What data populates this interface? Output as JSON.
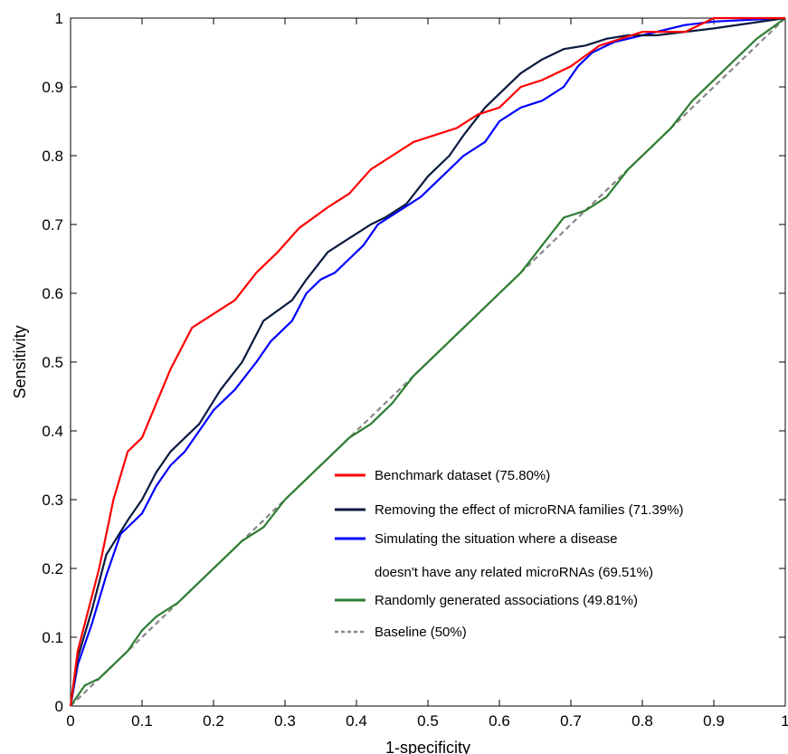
{
  "chart_data": {
    "type": "line",
    "xlabel": "1-specificity",
    "ylabel": "Sensitivity",
    "xlim": [
      0,
      1
    ],
    "ylim": [
      0,
      1
    ],
    "grid": false,
    "legend_position": "bottom-right",
    "x_ticks": [
      "0",
      "0.1",
      "0.2",
      "0.3",
      "0.4",
      "0.5",
      "0.6",
      "0.7",
      "0.8",
      "0.9",
      "1"
    ],
    "y_ticks": [
      "0",
      "0.1",
      "0.2",
      "0.3",
      "0.4",
      "0.5",
      "0.6",
      "0.7",
      "0.8",
      "0.9",
      "1"
    ],
    "series": [
      {
        "name": "Benchmark dataset (75.80%)",
        "color": "#ff0000",
        "x": [
          0,
          0.01,
          0.02,
          0.04,
          0.06,
          0.08,
          0.1,
          0.12,
          0.14,
          0.17,
          0.2,
          0.23,
          0.26,
          0.29,
          0.32,
          0.36,
          0.39,
          0.42,
          0.45,
          0.48,
          0.51,
          0.54,
          0.57,
          0.6,
          0.63,
          0.66,
          0.7,
          0.74,
          0.8,
          0.86,
          0.9,
          1
        ],
        "y": [
          0,
          0.08,
          0.12,
          0.2,
          0.3,
          0.37,
          0.39,
          0.44,
          0.49,
          0.55,
          0.57,
          0.59,
          0.63,
          0.66,
          0.695,
          0.725,
          0.745,
          0.78,
          0.8,
          0.82,
          0.83,
          0.84,
          0.86,
          0.87,
          0.9,
          0.91,
          0.93,
          0.96,
          0.98,
          0.98,
          1,
          1
        ]
      },
      {
        "name": "Removing the effect of microRNA families (71.39%)",
        "color": "#0a1a40",
        "x": [
          0,
          0.01,
          0.03,
          0.05,
          0.08,
          0.1,
          0.12,
          0.14,
          0.16,
          0.18,
          0.21,
          0.24,
          0.27,
          0.31,
          0.33,
          0.36,
          0.39,
          0.42,
          0.44,
          0.47,
          0.5,
          0.53,
          0.55,
          0.58,
          0.6,
          0.63,
          0.66,
          0.69,
          0.72,
          0.75,
          0.78,
          0.82,
          0.86,
          0.9,
          1
        ],
        "y": [
          0,
          0.07,
          0.14,
          0.22,
          0.27,
          0.3,
          0.34,
          0.37,
          0.39,
          0.41,
          0.46,
          0.5,
          0.56,
          0.59,
          0.62,
          0.66,
          0.68,
          0.7,
          0.71,
          0.73,
          0.77,
          0.8,
          0.83,
          0.87,
          0.89,
          0.92,
          0.94,
          0.955,
          0.96,
          0.97,
          0.975,
          0.975,
          0.98,
          0.985,
          1
        ]
      },
      {
        "name": "Simulating the situation where a disease doesn't have any related microRNAs (69.51%)",
        "line1": "Simulating the situation where a disease",
        "line2": "doesn't have any related microRNAs (69.51%)",
        "color": "#0000ff",
        "x": [
          0,
          0.01,
          0.03,
          0.05,
          0.07,
          0.1,
          0.12,
          0.14,
          0.16,
          0.18,
          0.2,
          0.23,
          0.26,
          0.28,
          0.31,
          0.33,
          0.35,
          0.37,
          0.39,
          0.41,
          0.43,
          0.46,
          0.49,
          0.52,
          0.55,
          0.58,
          0.6,
          0.63,
          0.66,
          0.69,
          0.71,
          0.73,
          0.76,
          0.8,
          0.86,
          0.9,
          1
        ],
        "y": [
          0,
          0.06,
          0.12,
          0.19,
          0.25,
          0.28,
          0.32,
          0.35,
          0.37,
          0.4,
          0.43,
          0.46,
          0.5,
          0.53,
          0.56,
          0.6,
          0.62,
          0.63,
          0.65,
          0.67,
          0.7,
          0.72,
          0.74,
          0.77,
          0.8,
          0.82,
          0.85,
          0.87,
          0.88,
          0.9,
          0.93,
          0.95,
          0.965,
          0.975,
          0.99,
          0.995,
          1
        ]
      },
      {
        "name": "Randomly generated associations (49.81%)",
        "color": "#2e7d32",
        "x": [
          0,
          0.02,
          0.04,
          0.06,
          0.08,
          0.1,
          0.12,
          0.15,
          0.18,
          0.21,
          0.24,
          0.27,
          0.3,
          0.33,
          0.36,
          0.39,
          0.42,
          0.45,
          0.48,
          0.51,
          0.54,
          0.57,
          0.6,
          0.63,
          0.66,
          0.69,
          0.72,
          0.75,
          0.78,
          0.81,
          0.84,
          0.87,
          0.9,
          0.93,
          0.96,
          1
        ],
        "y": [
          0,
          0.03,
          0.04,
          0.06,
          0.08,
          0.11,
          0.13,
          0.15,
          0.18,
          0.21,
          0.24,
          0.26,
          0.3,
          0.33,
          0.36,
          0.39,
          0.41,
          0.44,
          0.48,
          0.51,
          0.54,
          0.57,
          0.6,
          0.63,
          0.67,
          0.71,
          0.72,
          0.74,
          0.78,
          0.81,
          0.84,
          0.88,
          0.91,
          0.94,
          0.97,
          1
        ]
      },
      {
        "name": "Baseline (50%)",
        "color": "#888888",
        "dashed": true,
        "x": [
          0,
          1
        ],
        "y": [
          0,
          1
        ]
      }
    ]
  }
}
